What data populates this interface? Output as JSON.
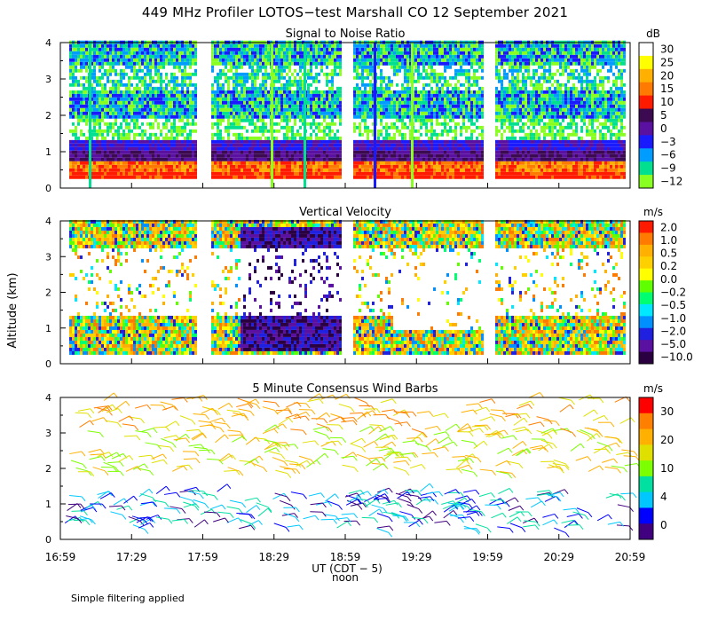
{
  "title": "449 MHz Profiler LOTOS−test Marshall CO 12 September 2021",
  "footnote": "Simple filtering applied",
  "x_axis": {
    "ticks": [
      "16:59",
      "17:29",
      "17:59",
      "18:29",
      "18:59",
      "19:29",
      "19:59",
      "20:29",
      "20:59"
    ],
    "label": "UT  (CDT − 5)",
    "noon_label": "noon"
  },
  "y_axis": {
    "label": "Altitude (km)",
    "ticks": [
      "0",
      "1",
      "2",
      "3",
      "4"
    ]
  },
  "chart_data": [
    {
      "type": "heatmap",
      "title": "Signal to Noise Ratio",
      "colorbar": {
        "unit": "dB",
        "labels": [
          "30",
          "25",
          "20",
          "15",
          "10",
          "5",
          "0",
          "−3",
          "−6",
          "−9",
          "−12"
        ],
        "colors": [
          "#ffffff",
          "#ffff00",
          "#ffb000",
          "#ff7a00",
          "#ff1a00",
          "#3c0a50",
          "#5a10a0",
          "#1a1aff",
          "#009cff",
          "#00e090",
          "#88ff20"
        ]
      },
      "x_range": [
        "16:59",
        "20:59"
      ],
      "ylim": [
        0,
        4
      ],
      "data_gaps": [
        [
          "17:51",
          "17:57"
        ],
        [
          "18:51",
          "18:56"
        ],
        [
          "19:51",
          "19:56"
        ]
      ]
    },
    {
      "type": "heatmap",
      "title": "Vertical Velocity",
      "colorbar": {
        "unit": "m/s",
        "labels": [
          "2.0",
          "1.0",
          "0.5",
          "0.2",
          "0.0",
          "−0.2",
          "−0.5",
          "−1.0",
          "−2.0",
          "−5.0",
          "−10.0"
        ],
        "colors": [
          "#ff1a00",
          "#ff7a00",
          "#ffb000",
          "#ffd000",
          "#ffff00",
          "#60ff00",
          "#00ff70",
          "#00e8ff",
          "#0090ff",
          "#2020e0",
          "#5a10a0",
          "#2a0040"
        ]
      },
      "x_range": [
        "16:59",
        "20:59"
      ],
      "ylim": [
        0,
        4
      ]
    },
    {
      "type": "scatter",
      "title": "5 Minute Consensus Wind Barbs",
      "colorbar": {
        "unit": "m/s",
        "labels": [
          "30",
          "20",
          "10",
          "4",
          "0"
        ],
        "colors": [
          "#ff0000",
          "#ff7f00",
          "#ffb000",
          "#e0e000",
          "#7cff00",
          "#00e0a0",
          "#00c8ff",
          "#0000ff",
          "#400080"
        ]
      },
      "x_range": [
        "16:59",
        "20:59"
      ],
      "ylim": [
        0,
        4
      ]
    }
  ]
}
